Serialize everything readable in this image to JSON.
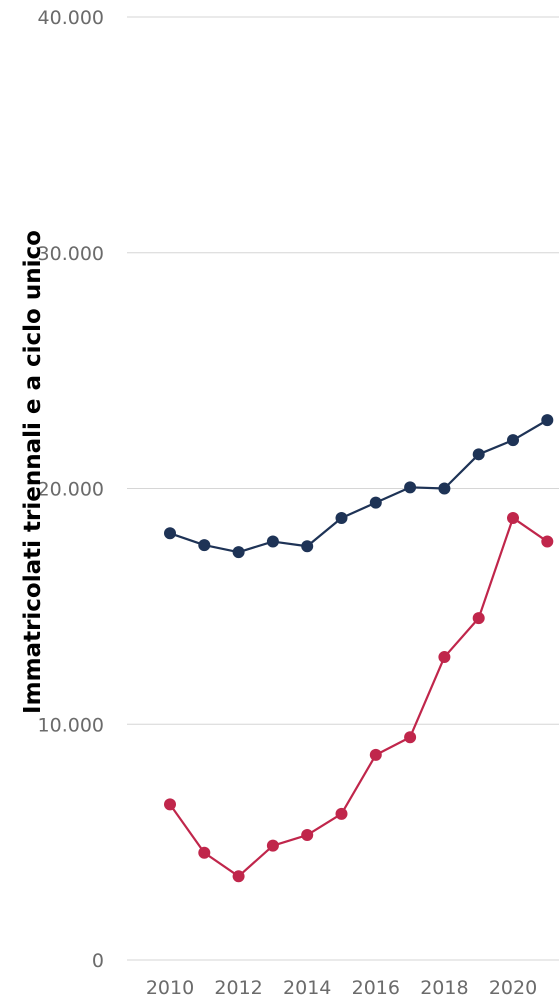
{
  "chart_data": {
    "type": "line",
    "title": "",
    "xlabel": "",
    "ylabel": "Immatricolati triennali e a ciclo unico",
    "x": [
      2010,
      2011,
      2012,
      2013,
      2014,
      2015,
      2016,
      2017,
      2018,
      2019,
      2020,
      2021
    ],
    "x_ticks": [
      "2010",
      "2012",
      "2014",
      "2016",
      "2018",
      "2020"
    ],
    "y_ticks": [
      "0",
      "10.000",
      "20.000",
      "30.000",
      "40.000"
    ],
    "y_tick_values": [
      0,
      10000,
      20000,
      30000,
      40000
    ],
    "ylim": [
      0,
      40000
    ],
    "grid": true,
    "series": [
      {
        "color": "#1e3356",
        "values": [
          18100,
          17600,
          17300,
          17750,
          17550,
          18750,
          19400,
          20050,
          20000,
          21450,
          22050,
          22900
        ]
      },
      {
        "color": "#c0264b",
        "values": [
          6600,
          4550,
          3550,
          4850,
          5300,
          6200,
          8700,
          9450,
          12850,
          14500,
          18750,
          17750
        ]
      }
    ]
  }
}
